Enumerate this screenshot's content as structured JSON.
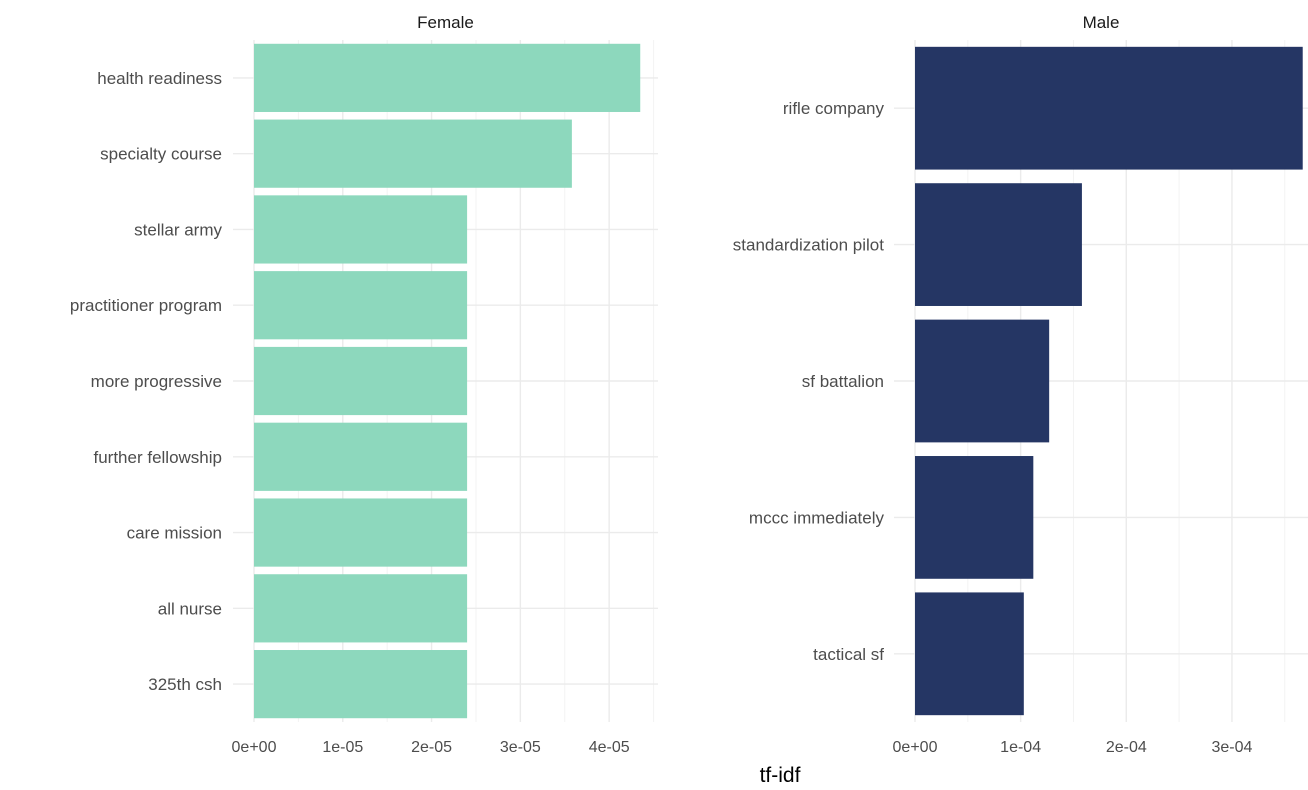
{
  "chart_data": {
    "type": "bar",
    "orientation": "horizontal",
    "xlabel": "tf-idf",
    "ylabel": "",
    "grid": true,
    "legend": "none",
    "panels": [
      {
        "title": "Female",
        "color": "#8dd8bd",
        "xlim": [
          0,
          4.55e-05
        ],
        "ticks": [
          0,
          1e-05,
          2e-05,
          3e-05,
          4e-05
        ],
        "tick_labels": [
          "0e+00",
          "1e-05",
          "2e-05",
          "3e-05",
          "4e-05"
        ],
        "categories": [
          "health readiness",
          "specialty course",
          "stellar army",
          "practitioner program",
          "more progressive",
          "further fellowship",
          "care mission",
          "all nurse",
          "325th csh"
        ],
        "values": [
          4.35e-05,
          3.58e-05,
          2.4e-05,
          2.4e-05,
          2.4e-05,
          2.4e-05,
          2.4e-05,
          2.4e-05,
          2.4e-05
        ]
      },
      {
        "title": "Male",
        "color": "#253664",
        "xlim": [
          0,
          0.000372
        ],
        "ticks": [
          0,
          0.0001,
          0.0002,
          0.0003
        ],
        "tick_labels": [
          "0e+00",
          "1e-04",
          "2e-04",
          "3e-04"
        ],
        "categories": [
          "rifle company",
          "standardization pilot",
          "sf battalion",
          "mccc immediately",
          "tactical sf"
        ],
        "values": [
          0.000367,
          0.000158,
          0.000127,
          0.000112,
          0.000103
        ]
      }
    ]
  }
}
